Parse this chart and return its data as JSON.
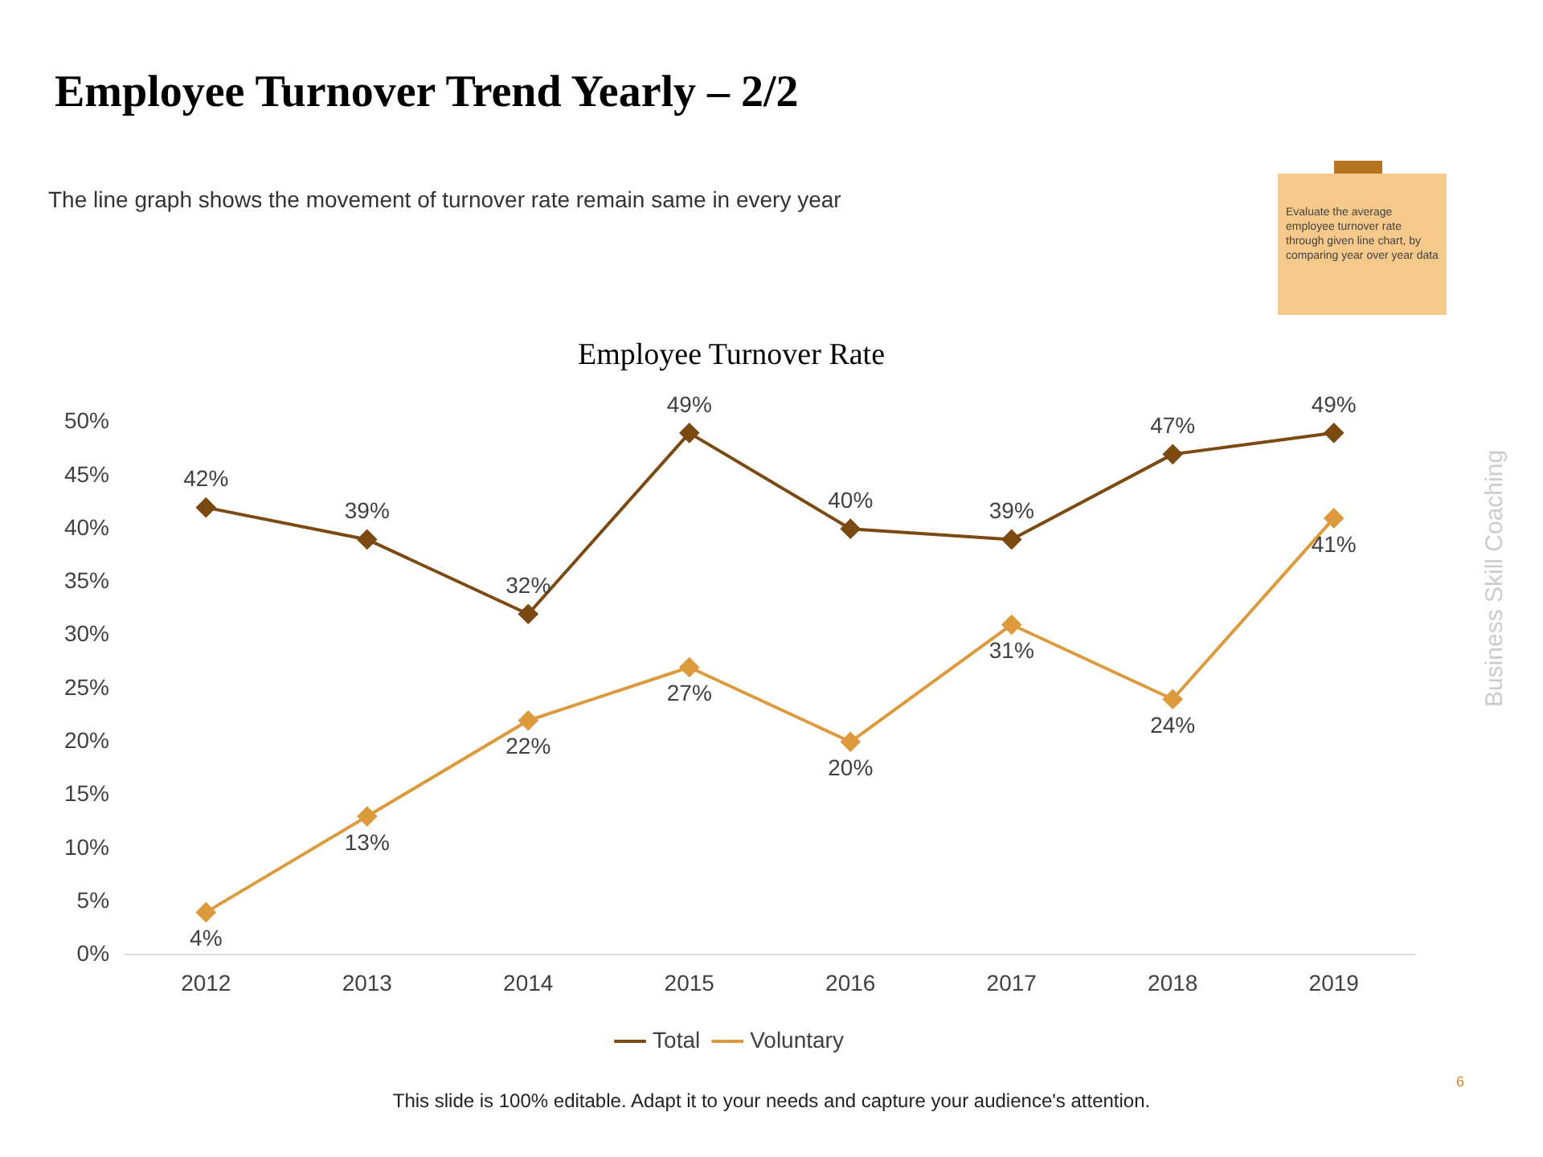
{
  "chart_data": {
    "type": "line",
    "title": "Employee Turnover Rate",
    "categories": [
      "2012",
      "2013",
      "2014",
      "2015",
      "2016",
      "2017",
      "2018",
      "2019"
    ],
    "series": [
      {
        "name": "Total",
        "color": "#7b4a12",
        "values": [
          42,
          39,
          32,
          49,
          40,
          39,
          47,
          49
        ]
      },
      {
        "name": "Voluntary",
        "color": "#dd9a3c",
        "values": [
          4,
          13,
          22,
          27,
          20,
          31,
          24,
          41
        ]
      }
    ],
    "ylim": [
      0,
      50
    ],
    "yticks": [
      {
        "value": 0,
        "label": "0%"
      },
      {
        "value": 5,
        "label": "5%"
      },
      {
        "value": 10,
        "label": "10%"
      },
      {
        "value": 15,
        "label": "15%"
      },
      {
        "value": 20,
        "label": "20%"
      },
      {
        "value": 25,
        "label": "25%"
      },
      {
        "value": 30,
        "label": "30%"
      },
      {
        "value": 35,
        "label": "35%"
      },
      {
        "value": 40,
        "label": "40%"
      },
      {
        "value": 45,
        "label": "45%"
      },
      {
        "value": 50,
        "label": "50%"
      }
    ],
    "value_labels": [
      [
        "42%",
        "39%",
        "32%",
        "49%",
        "40%",
        "39%",
        "47%",
        "49%"
      ],
      [
        "4%",
        "13%",
        "22%",
        "27%",
        "20%",
        "31%",
        "24%",
        "41%"
      ]
    ],
    "grid": false,
    "legend": "bottom",
    "marker": "diamond",
    "line_style": "solid",
    "annotations": [
      "Employee Turnover Trend Yearly – 2/2",
      "The line graph shows the movement of turnover rate remain same in every year",
      "Evaluate the average employee turnover rate through given line chart, by comparing year over year data",
      "Business Skill Coaching",
      "This slide is 100% editable. Adapt it to your needs and capture your audience's attention.",
      "6"
    ]
  }
}
